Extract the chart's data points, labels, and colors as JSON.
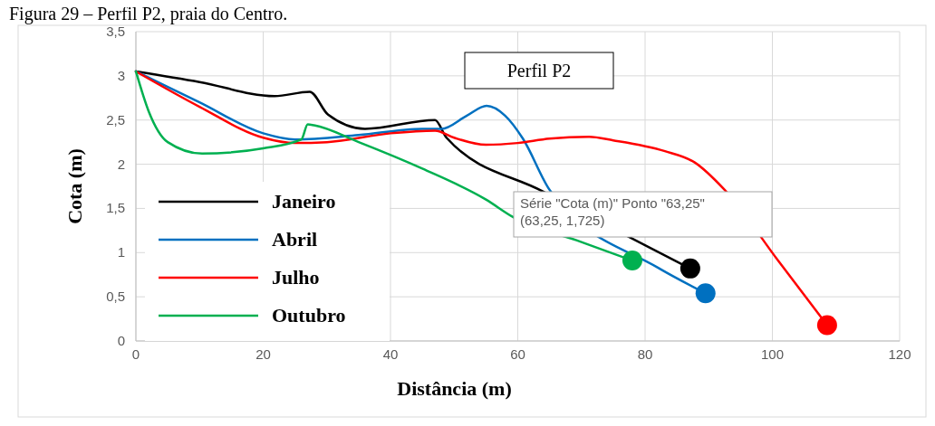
{
  "chart_data": {
    "type": "line",
    "title": "Figura 29 – Perfil P2, praia do Centro.",
    "xlabel": "Distância (m)",
    "ylabel": "Cota (m)",
    "annotations": [
      "Perfil  P2",
      "Série \"Cota (m)\" Ponto \"63,25\"\n(63,25, 1,725)"
    ],
    "xlim": [
      0,
      120
    ],
    "xticks": [
      0,
      20,
      40,
      60,
      80,
      100,
      120
    ],
    "ylim": [
      0,
      3.5
    ],
    "yticks": [
      0,
      {
        "value": 0.5,
        "label": "0,5"
      },
      1,
      {
        "value": 1.5,
        "label": "1,5"
      },
      2,
      {
        "value": 2.5,
        "label": "2,5"
      },
      3,
      {
        "value": 3.5,
        "label": "3,5"
      }
    ],
    "grid": true,
    "legend": "bottom left",
    "line_style": "solid",
    "series": [
      {
        "name": "Janeiro",
        "color": "#000000",
        "x": [
          0,
          10,
          21.8,
          27.3,
          30.2,
          36,
          47,
          48.8,
          64,
          87.1
        ],
        "values": [
          3.05,
          2.93,
          2.77,
          2.82,
          2.56,
          2.4,
          2.5,
          2.3,
          1.69,
          0.82
        ]
      },
      {
        "name": "Abril",
        "color": "#0070c0",
        "x": [
          0,
          10,
          20,
          25,
          35,
          45,
          48,
          52,
          55.1,
          58,
          60.8,
          65,
          82,
          89.5
        ],
        "values": [
          3.05,
          2.7,
          2.35,
          2.28,
          2.33,
          2.4,
          2.4,
          2.55,
          2.66,
          2.55,
          2.29,
          1.71,
          0.83,
          0.54
        ]
      },
      {
        "name": "Julho",
        "color": "#ff0000",
        "x": [
          0,
          10,
          20,
          25,
          30,
          40,
          47,
          50,
          55,
          60,
          65,
          71.2,
          75,
          83,
          87.8,
          92.5,
          101,
          108.6
        ],
        "values": [
          3.05,
          2.65,
          2.3,
          2.24,
          2.25,
          2.35,
          2.38,
          2.3,
          2.22,
          2.24,
          2.29,
          2.31,
          2.27,
          2.15,
          2.02,
          1.71,
          0.9,
          0.18
        ]
      },
      {
        "name": "Outubro",
        "color": "#00b050",
        "x": [
          0,
          2,
          5,
          10.4,
          20,
          26,
          27,
          28,
          35,
          45,
          55,
          59.3,
          70,
          78
        ],
        "values": [
          3.05,
          2.6,
          2.25,
          2.12,
          2.18,
          2.28,
          2.45,
          2.44,
          2.25,
          1.95,
          1.6,
          1.4,
          1.12,
          0.91
        ]
      },
      {
        "type": "scatter",
        "marker": "circle",
        "color": "#000000",
        "x": [
          87.1
        ],
        "values": [
          0.82
        ]
      },
      {
        "type": "scatter",
        "marker": "circle",
        "color": "#0070c0",
        "x": [
          89.5
        ],
        "values": [
          0.54
        ]
      },
      {
        "type": "scatter",
        "marker": "circle",
        "color": "#ff0000",
        "x": [
          108.6
        ],
        "values": [
          0.18
        ]
      },
      {
        "type": "scatter",
        "marker": "circle",
        "color": "#00b050",
        "x": [
          78
        ],
        "values": [
          0.91
        ]
      }
    ]
  }
}
